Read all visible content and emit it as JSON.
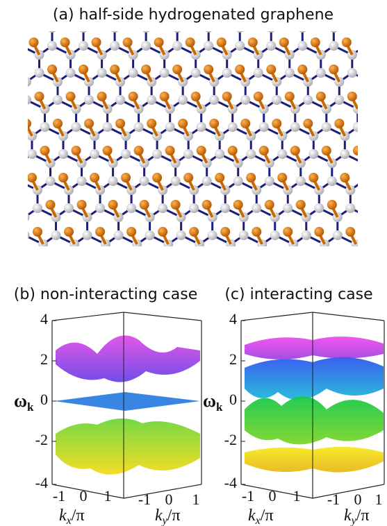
{
  "panels": [
    {
      "title": "(a) half-side hydrogenated graphene"
    },
    {
      "title": "(b) non-interacting case",
      "y_label": "ω",
      "y_label_sub": "k",
      "z_ticks": [
        4,
        2,
        0,
        -2,
        -4
      ],
      "kx_ticks": [
        -1,
        0,
        1
      ],
      "ky_ticks": [
        -1,
        0,
        1
      ],
      "kx_label": "k",
      "kx_sub": "x",
      "kx_unit": "/π",
      "ky_label": "k",
      "ky_sub": "y",
      "ky_unit": "/π"
    },
    {
      "title": "(c) interacting case",
      "y_label": "ω",
      "y_label_sub": "k",
      "z_ticks": [
        4,
        2,
        0,
        -2,
        -4
      ],
      "kx_ticks": [
        -1,
        0,
        1
      ],
      "ky_ticks": [
        -1,
        0,
        1
      ],
      "kx_label": "k",
      "kx_sub": "x",
      "kx_unit": "/π",
      "ky_label": "k",
      "ky_sub": "y",
      "ky_unit": "/π"
    }
  ]
}
